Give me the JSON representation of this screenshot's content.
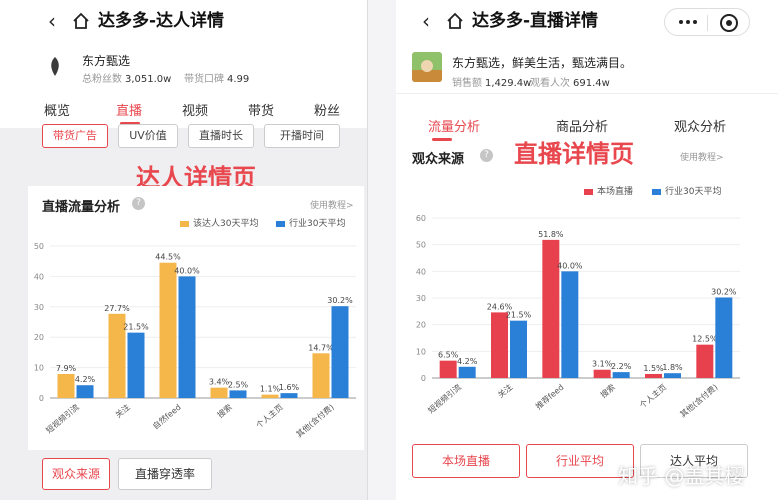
{
  "colors": {
    "accent": "#e8474e",
    "yellow": "#f5b64a",
    "blue": "#2a7fd6",
    "red": "#e8414e"
  },
  "left": {
    "nav": {
      "back_icon": "chevron-left-icon",
      "home_icon": "home-icon",
      "title": "达多多-达人详情"
    },
    "shop": {
      "name": "东方甄选",
      "fans_label": "总粉丝数",
      "fans_value": "3,051.0w",
      "sales_label": "带货口碑",
      "sales_value": "4.99"
    },
    "tabs": [
      "概览",
      "直播",
      "视频",
      "带货",
      "粉丝"
    ],
    "active_tab": 1,
    "filters": [
      "带货广告",
      "UV价值",
      "直播时长",
      "开播时间"
    ],
    "banner": "达人详情页",
    "section": {
      "title": "直播流量分析",
      "tutorial": "使用教程>"
    },
    "bottom_buttons": [
      "观众来源",
      "直播穿透率"
    ],
    "chart_data": {
      "type": "bar",
      "categories": [
        "短视频引流",
        "关注",
        "自然feed",
        "搜索",
        "个人主页",
        "其他(含付费)"
      ],
      "series": [
        {
          "name": "该达人30天平均",
          "values": [
            7.9,
            27.7,
            44.5,
            3.4,
            1.1,
            14.7
          ],
          "labels": [
            "7.9%",
            "27.7%",
            "44.5%",
            "3.4%",
            "1.1%",
            "14.7%"
          ],
          "color": "#f5b64a"
        },
        {
          "name": "行业30天平均",
          "values": [
            4.2,
            21.5,
            40.0,
            2.5,
            1.6,
            30.2
          ],
          "labels": [
            "4.2%",
            "21.5%",
            "40.0%",
            "2.5%",
            "1.6%",
            "30.2%"
          ],
          "color": "#2a7fd6"
        }
      ],
      "yticks": [
        "0",
        "10",
        "20",
        "30",
        "40",
        "50"
      ],
      "ylim": [
        0,
        50
      ],
      "grid": true,
      "legend": "top-right"
    }
  },
  "right": {
    "nav": {
      "back_icon": "chevron-left-icon",
      "home_icon": "home-icon",
      "title": "达多多-直播详情"
    },
    "shop": {
      "name": "东方甄选，鲜美生活，甄选满目。",
      "fans_label": "销售额",
      "fans_value": "1,429.4w",
      "sales_label": "观看人次",
      "sales_value": "691.4w"
    },
    "tabs": [
      "流量分析",
      "商品分析",
      "观众分析"
    ],
    "active_tab": 0,
    "banner": "直播详情页",
    "section": {
      "title": "观众来源",
      "tutorial": "使用教程>"
    },
    "bottom_buttons": [
      "本场直播",
      "行业平均",
      "达人平均"
    ],
    "watermark": "知乎 @盖其樱",
    "chart_data": {
      "type": "bar",
      "categories": [
        "短视频引流",
        "关注",
        "推荐feed",
        "搜索",
        "个人主页",
        "其他(含付费)"
      ],
      "series": [
        {
          "name": "本场直播",
          "values": [
            6.5,
            24.6,
            51.8,
            3.1,
            1.5,
            12.5
          ],
          "labels": [
            "6.5%",
            "24.6%",
            "51.8%",
            "3.1%",
            "1.5%",
            "12.5%"
          ],
          "color": "#e8414e"
        },
        {
          "name": "行业30天平均",
          "values": [
            4.2,
            21.5,
            40.0,
            2.2,
            1.8,
            30.2
          ],
          "labels": [
            "4.2%",
            "21.5%",
            "40.0%",
            "2.2%",
            "1.8%",
            "30.2%"
          ],
          "color": "#2a7fd6"
        }
      ],
      "yticks": [
        "0",
        "10",
        "20",
        "30",
        "40",
        "50",
        "60"
      ],
      "ylim": [
        0,
        60
      ],
      "grid": true,
      "legend": "top-right"
    }
  }
}
